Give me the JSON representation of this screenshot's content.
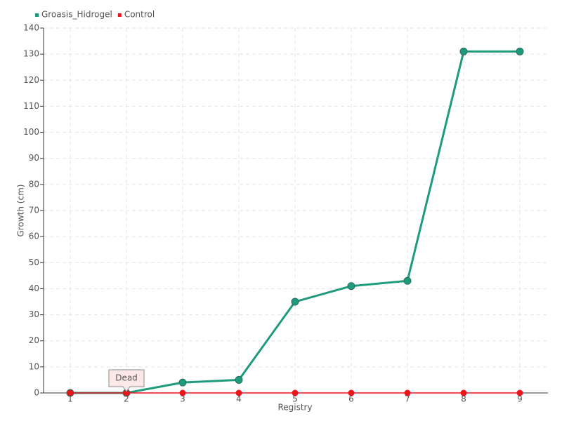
{
  "chart_data": {
    "type": "line",
    "categories": [
      "1",
      "2",
      "3",
      "4",
      "5",
      "6",
      "7",
      "8",
      "9"
    ],
    "series": [
      {
        "name": "Groasis_Hidrogel",
        "color": "#1f9a7c",
        "values": [
          0,
          0,
          4,
          5,
          35,
          41,
          43,
          131,
          131
        ]
      },
      {
        "name": "Control",
        "color": "#e8141e",
        "values": [
          0,
          0,
          0,
          0,
          0,
          0,
          0,
          0,
          0
        ]
      }
    ],
    "x_label": "Registry",
    "y_label": "Growth (cm)",
    "annotation": "Dead",
    "ylim": [
      0,
      140
    ],
    "yticks": [
      0,
      10,
      20,
      30,
      40,
      50,
      60,
      70,
      80,
      90,
      100,
      110,
      120,
      130,
      140
    ],
    "grid": true,
    "legend": "top-left"
  }
}
